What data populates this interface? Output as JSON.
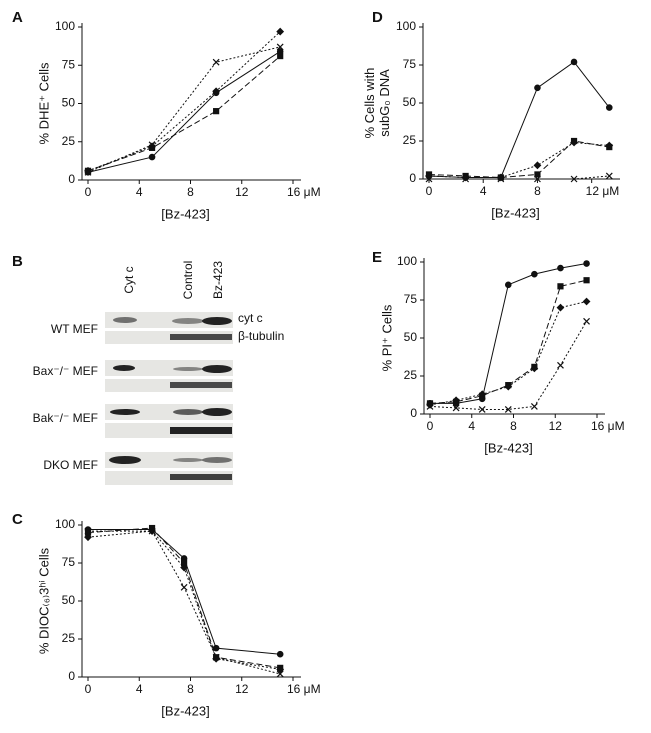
{
  "chart_data": [
    {
      "type": "line",
      "panel": "A",
      "ylabel": [
        "% DHE⁺ Cells"
      ],
      "xlabel": "[Bz-423]",
      "x": [
        0,
        5,
        10,
        15
      ],
      "xlim": [
        0,
        16
      ],
      "xticks": [
        0,
        4,
        8,
        12,
        {
          "value": 16,
          "label": "16 μM"
        }
      ],
      "ylim": [
        0,
        100
      ],
      "yticks": [
        0,
        25,
        50,
        75,
        100
      ],
      "series": [
        {
          "color": "#111",
          "dash": "solid",
          "marker": "circle",
          "values": [
            5,
            15,
            57,
            84
          ]
        },
        {
          "color": "#111",
          "dash": "dashed",
          "marker": "square",
          "values": [
            6,
            21,
            45,
            81
          ]
        },
        {
          "color": "#111",
          "dash": "dotted",
          "marker": "diamond",
          "values": [
            6,
            22,
            58,
            97
          ]
        },
        {
          "color": "#111",
          "dash": "dotted",
          "marker": "x",
          "values": [
            5,
            23,
            77,
            87
          ]
        }
      ]
    },
    {
      "type": "line",
      "panel": "C",
      "ylabel": [
        "% DIOC₍₆₎3ʰⁱ Cells"
      ],
      "xlabel": "[Bz-423]",
      "x": [
        0,
        5,
        7.5,
        10,
        15
      ],
      "xlim": [
        0,
        16
      ],
      "xticks": [
        0,
        4,
        8,
        12,
        {
          "value": 16,
          "label": "16 μM"
        }
      ],
      "ylim": [
        0,
        100
      ],
      "yticks": [
        0,
        25,
        50,
        75,
        100
      ],
      "series": [
        {
          "color": "#111",
          "dash": "solid",
          "marker": "circle",
          "values": [
            97,
            97,
            78,
            19,
            15
          ]
        },
        {
          "color": "#111",
          "dash": "dashed",
          "marker": "square",
          "values": [
            95,
            98,
            75,
            13,
            6
          ]
        },
        {
          "color": "#111",
          "dash": "dotted",
          "marker": "diamond",
          "values": [
            92,
            96,
            72,
            12,
            5
          ]
        },
        {
          "color": "#111",
          "dash": "dotted",
          "marker": "x",
          "values": [
            96,
            96,
            59,
            13,
            2
          ]
        }
      ]
    },
    {
      "type": "line",
      "panel": "D",
      "ylabel": [
        "% Cells with",
        "subG₀ DNA"
      ],
      "xlabel": "[Bz-423]",
      "x": [
        0,
        2.7,
        5.3,
        8,
        10.7,
        13.3
      ],
      "xlim": [
        0,
        13.5
      ],
      "xticks": [
        0,
        4,
        8,
        {
          "value": 12,
          "label": "12 μM"
        }
      ],
      "ylim": [
        0,
        100
      ],
      "yticks": [
        0,
        25,
        50,
        75,
        100
      ],
      "series": [
        {
          "color": "#111",
          "dash": "solid",
          "marker": "circle",
          "values": [
            2,
            1,
            1,
            60,
            77,
            47
          ]
        },
        {
          "color": "#111",
          "dash": "dashed",
          "marker": "square",
          "values": [
            3,
            2,
            1,
            3,
            25,
            21
          ]
        },
        {
          "color": "#111",
          "dash": "dotted",
          "marker": "diamond",
          "values": [
            2,
            1,
            1,
            9,
            24,
            22
          ]
        },
        {
          "color": "#111",
          "dash": "dotted",
          "marker": "x",
          "values": [
            0,
            0,
            0,
            0,
            0,
            2
          ]
        }
      ]
    },
    {
      "type": "line",
      "panel": "E",
      "ylabel": [
        "% PI⁺ Cells"
      ],
      "xlabel": "[Bz-423]",
      "x": [
        0,
        2.5,
        5,
        7.5,
        10,
        12.5,
        15
      ],
      "xlim": [
        0,
        16
      ],
      "xticks": [
        0,
        4,
        8,
        12,
        {
          "value": 16,
          "label": "16 μM"
        }
      ],
      "ylim": [
        0,
        100
      ],
      "yticks": [
        0,
        25,
        50,
        75,
        100
      ],
      "series": [
        {
          "color": "#111",
          "dash": "solid",
          "marker": "circle",
          "values": [
            7,
            7,
            10,
            85,
            92,
            96,
            99
          ]
        },
        {
          "color": "#111",
          "dash": "dashed",
          "marker": "square",
          "values": [
            7,
            8,
            12,
            19,
            31,
            84,
            88
          ]
        },
        {
          "color": "#111",
          "dash": "dotted",
          "marker": "diamond",
          "values": [
            6,
            9,
            13,
            18,
            30,
            70,
            74
          ]
        },
        {
          "color": "#111",
          "dash": "dotted",
          "marker": "x",
          "values": [
            5,
            4,
            3,
            3,
            5,
            32,
            61
          ]
        }
      ]
    }
  ],
  "blot": {
    "panel": "B",
    "lanes": [
      "Cyt c",
      "Control",
      "Bz-423"
    ],
    "rows": [
      {
        "label": "WT MEF"
      },
      {
        "label": "Bax⁻/⁻ MEF"
      },
      {
        "label": "Bak⁻/⁻ MEF"
      },
      {
        "label": "DKO MEF"
      }
    ],
    "band_labels": [
      "cyt c",
      "β-tubulin"
    ]
  }
}
